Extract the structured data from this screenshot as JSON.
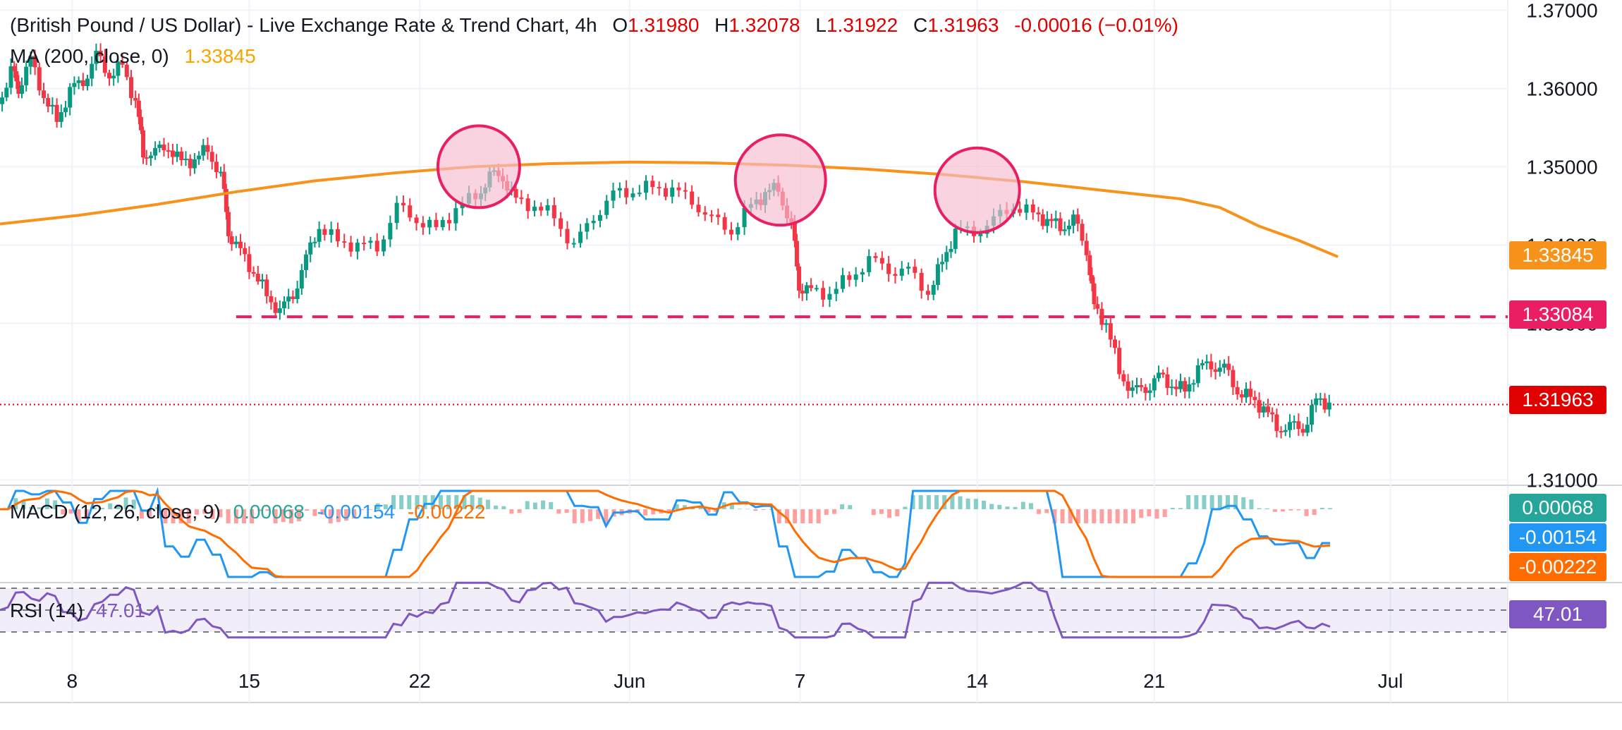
{
  "legend": {
    "title": "(British Pound / US Dollar) - Live Exchange Rate & Trend Chart, 4h",
    "o_label": "O",
    "o_value": "1.31980",
    "h_label": "H",
    "h_value": "1.32078",
    "l_label": "L",
    "l_value": "1.31922",
    "c_label": "C",
    "c_value": "1.31963",
    "change": "-0.00016 (−0.01%)",
    "ma_label": "MA (200, close, 0)",
    "ma_value": "1.33845"
  },
  "macd": {
    "label": "MACD (12, 26, close, 9)",
    "hist_value": "0.00068",
    "macd_value": "-0.00154",
    "signal_value": "-0.00222"
  },
  "rsi": {
    "label": "RSI (14)",
    "value": "47.01"
  },
  "price_tags": {
    "ma": "1.33845",
    "support": "1.33084",
    "last": "1.31963"
  },
  "colors": {
    "up": "#089981",
    "down": "#f23645",
    "ma": "#f7931a",
    "support": "#e91e63",
    "last": "#e00000",
    "macd_line": "#2196f3",
    "signal_line": "#ff6d00",
    "rsi_line": "#7e57c2",
    "circle_fill": "#f8bbd0",
    "circle_stroke": "#e91e63"
  },
  "chart_data": {
    "type": "candlestick",
    "title": "(British Pound / US Dollar) - Live Exchange Rate & Trend Chart, 4h",
    "y_ticks": [
      "1.37000",
      "1.36000",
      "1.35000",
      "1.34000",
      "1.33000",
      "1.32000",
      "1.31000"
    ],
    "ylim": [
      1.3095,
      1.3713
    ],
    "x_ticks": [
      "8",
      "15",
      "22",
      "Jun",
      "7",
      "14",
      "21",
      "Jul"
    ],
    "support_level": 1.33084,
    "last_price": 1.31963,
    "ma200_current": 1.33845,
    "ma200_path": [
      [
        0,
        1.3427
      ],
      [
        0.06,
        1.3438
      ],
      [
        0.12,
        1.3452
      ],
      [
        0.18,
        1.3468
      ],
      [
        0.24,
        1.3482
      ],
      [
        0.3,
        1.3492
      ],
      [
        0.36,
        1.35
      ],
      [
        0.42,
        1.3504
      ],
      [
        0.48,
        1.3506
      ],
      [
        0.54,
        1.3505
      ],
      [
        0.6,
        1.3502
      ],
      [
        0.66,
        1.3497
      ],
      [
        0.72,
        1.349
      ],
      [
        0.78,
        1.3481
      ],
      [
        0.84,
        1.347
      ],
      [
        0.9,
        1.3459
      ],
      [
        0.93,
        1.3448
      ],
      [
        0.96,
        1.3424
      ],
      [
        0.99,
        1.3406
      ],
      [
        1.02,
        1.3385
      ]
    ],
    "close_path": [
      [
        0,
        1.358
      ],
      [
        0.01,
        1.362
      ],
      [
        0.015,
        1.3602
      ],
      [
        0.025,
        1.3635
      ],
      [
        0.035,
        1.359
      ],
      [
        0.045,
        1.356
      ],
      [
        0.055,
        1.3595
      ],
      [
        0.065,
        1.3612
      ],
      [
        0.075,
        1.364
      ],
      [
        0.085,
        1.3618
      ],
      [
        0.095,
        1.363
      ],
      [
        0.105,
        1.358
      ],
      [
        0.11,
        1.352
      ],
      [
        0.12,
        1.3515
      ],
      [
        0.13,
        1.3528
      ],
      [
        0.14,
        1.3505
      ],
      [
        0.15,
        1.3508
      ],
      [
        0.16,
        1.3525
      ],
      [
        0.17,
        1.3485
      ],
      [
        0.175,
        1.342
      ],
      [
        0.185,
        1.339
      ],
      [
        0.195,
        1.3365
      ],
      [
        0.205,
        1.3338
      ],
      [
        0.215,
        1.3312
      ],
      [
        0.225,
        1.334
      ],
      [
        0.235,
        1.338
      ],
      [
        0.245,
        1.3425
      ],
      [
        0.26,
        1.3405
      ],
      [
        0.275,
        1.3398
      ],
      [
        0.29,
        1.34
      ],
      [
        0.305,
        1.3445
      ],
      [
        0.32,
        1.3435
      ],
      [
        0.335,
        1.342
      ],
      [
        0.35,
        1.3445
      ],
      [
        0.365,
        1.3465
      ],
      [
        0.375,
        1.3485
      ],
      [
        0.385,
        1.349
      ],
      [
        0.395,
        1.3455
      ],
      [
        0.41,
        1.345
      ],
      [
        0.425,
        1.3438
      ],
      [
        0.44,
        1.3395
      ],
      [
        0.455,
        1.344
      ],
      [
        0.47,
        1.3462
      ],
      [
        0.485,
        1.347
      ],
      [
        0.5,
        1.3475
      ],
      [
        0.515,
        1.3468
      ],
      [
        0.53,
        1.346
      ],
      [
        0.545,
        1.343
      ],
      [
        0.56,
        1.342
      ],
      [
        0.575,
        1.345
      ],
      [
        0.585,
        1.3465
      ],
      [
        0.595,
        1.3475
      ],
      [
        0.605,
        1.342
      ],
      [
        0.61,
        1.335
      ],
      [
        0.62,
        1.334
      ],
      [
        0.635,
        1.3338
      ],
      [
        0.65,
        1.336
      ],
      [
        0.665,
        1.3378
      ],
      [
        0.68,
        1.3372
      ],
      [
        0.695,
        1.3365
      ],
      [
        0.71,
        1.334
      ],
      [
        0.72,
        1.338
      ],
      [
        0.73,
        1.3415
      ],
      [
        0.745,
        1.342
      ],
      [
        0.76,
        1.3428
      ],
      [
        0.775,
        1.3452
      ],
      [
        0.79,
        1.344
      ],
      [
        0.8,
        1.343
      ],
      [
        0.81,
        1.3425
      ],
      [
        0.82,
        1.343
      ],
      [
        0.83,
        1.3395
      ],
      [
        0.835,
        1.332
      ],
      [
        0.845,
        1.33
      ],
      [
        0.855,
        1.324
      ],
      [
        0.865,
        1.321
      ],
      [
        0.875,
        1.322
      ],
      [
        0.885,
        1.323
      ],
      [
        0.895,
        1.3222
      ],
      [
        0.905,
        1.3215
      ],
      [
        0.915,
        1.324
      ],
      [
        0.925,
        1.325
      ],
      [
        0.935,
        1.324
      ],
      [
        0.945,
        1.3215
      ],
      [
        0.955,
        1.3205
      ],
      [
        0.965,
        1.319
      ],
      [
        0.975,
        1.317
      ],
      [
        0.985,
        1.3165
      ],
      [
        0.995,
        1.3168
      ],
      [
        1.005,
        1.32
      ],
      [
        1.015,
        1.3198
      ]
    ],
    "macd": {
      "hist": 0.00068,
      "macd": -0.00154,
      "signal": -0.00222
    },
    "rsi": {
      "period": 14,
      "value": 47.01
    }
  }
}
